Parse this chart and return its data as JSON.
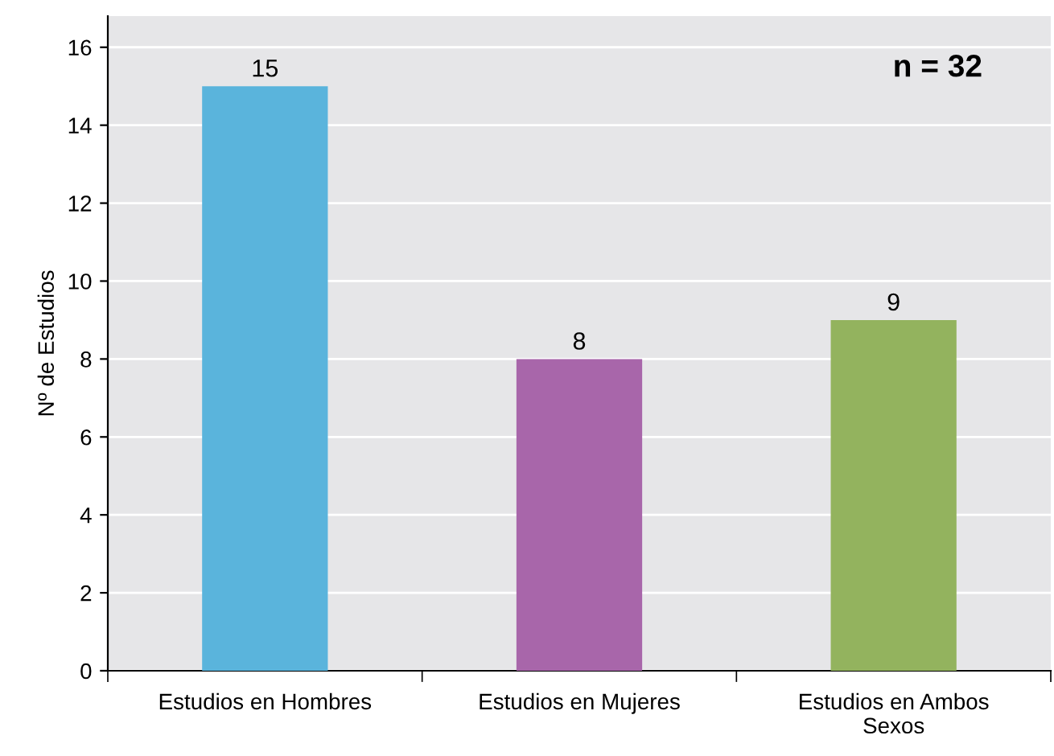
{
  "chart_data": {
    "type": "bar",
    "ylabel": "Nº de Estudios",
    "categories": [
      "Estudios en Hombres",
      "Estudios en Mujeres",
      "Estudios en Ambos\nSexos"
    ],
    "values": [
      15,
      8,
      9
    ],
    "colors": [
      "#5ab4dc",
      "#a866aa",
      "#93b35e"
    ],
    "ylim": [
      0,
      16.8
    ],
    "yticks": [
      0,
      2,
      4,
      6,
      8,
      10,
      12,
      14,
      16
    ],
    "grid": "y",
    "data_labels": true,
    "annotations": [
      "n = 32"
    ]
  }
}
